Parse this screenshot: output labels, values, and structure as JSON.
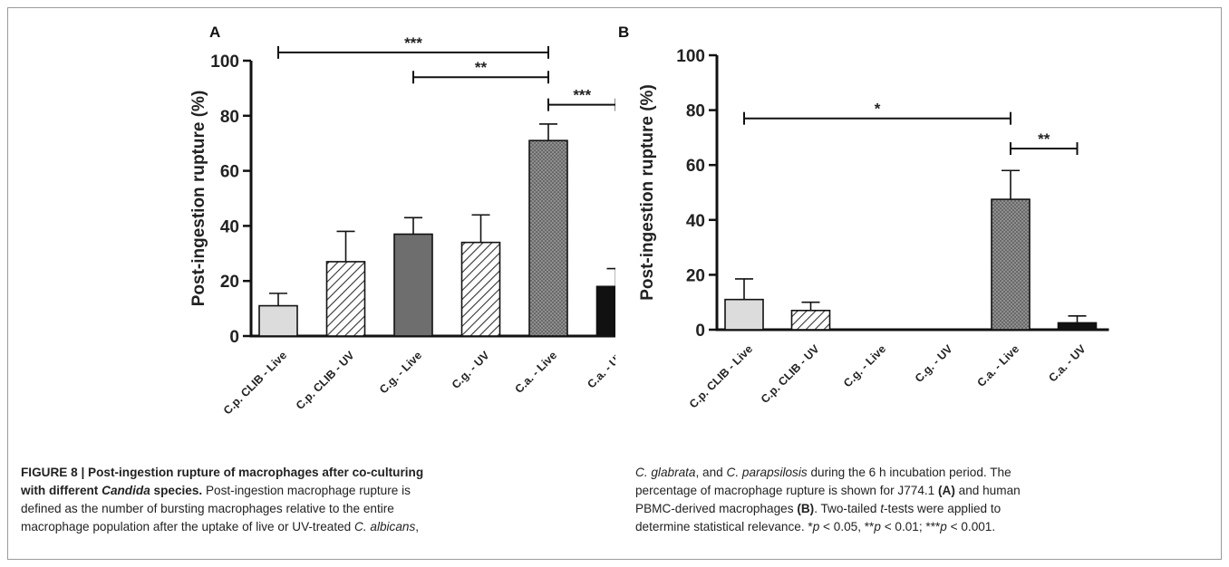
{
  "chart_data": [
    {
      "type": "bar",
      "panel_label": "A",
      "ylabel": "Post-ingestion rupture (%)",
      "ylim": [
        0,
        100
      ],
      "yticks": [
        0,
        20,
        40,
        60,
        80,
        100
      ],
      "categories": [
        "C.p. CLIB - Live",
        "C.p. CLIB - UV",
        "C.g. - Live",
        "C.g. - UV",
        "C.a. - Live",
        "C.a. - UV"
      ],
      "values": [
        11,
        27,
        37,
        34,
        71,
        18
      ],
      "errors": [
        4.5,
        11,
        6,
        10,
        6,
        6.5
      ],
      "fills": [
        "light-gray",
        "hatched",
        "dark-gray",
        "hatched",
        "dotted",
        "black"
      ],
      "significance": [
        {
          "from": 0,
          "to": 4,
          "label": "***",
          "y": 103
        },
        {
          "from": 2,
          "to": 4,
          "label": "**",
          "y": 94
        },
        {
          "from": 4,
          "to": 5,
          "label": "***",
          "y": 84
        }
      ]
    },
    {
      "type": "bar",
      "panel_label": "B",
      "ylabel": "Post-ingestion rupture (%)",
      "ylim": [
        0,
        100
      ],
      "yticks": [
        0,
        20,
        40,
        60,
        80,
        100
      ],
      "categories": [
        "C.p. CLIB - Live",
        "C.p. CLIB - UV",
        "C.g. - Live",
        "C.g. - UV",
        "C.a. - Live",
        "C.a. - UV"
      ],
      "values": [
        11,
        7,
        0,
        0,
        47.5,
        2.5
      ],
      "errors": [
        7.5,
        3,
        0,
        0,
        10.5,
        2.5
      ],
      "fills": [
        "light-gray",
        "hatched",
        "dark-gray",
        "hatched",
        "dotted",
        "black"
      ],
      "significance": [
        {
          "from": 0,
          "to": 4,
          "label": "*",
          "y": 77
        },
        {
          "from": 4,
          "to": 5,
          "label": "**",
          "y": 66
        }
      ]
    }
  ],
  "caption": {
    "figure_label": "FIGURE 8 | Post-ingestion rupture of macrophages after co-culturing",
    "title_line2_prefix": "with different ",
    "title_line2_italic": "Candida",
    "title_line2_suffix": " species.",
    "line2_rest": " Post-ingestion macrophage rupture is",
    "line3": "defined as the number of bursting macrophages relative to the entire",
    "line4_prefix": "macrophage population after the uptake of live or UV-treated ",
    "line4_italic": "C. albicans",
    "line4_suffix": ",",
    "r1_italic_a": "C. glabrata",
    "r1_mid": ", and ",
    "r1_italic_b": "C. parapsilosis",
    "r1_suffix": " during the 6 h incubation period. The",
    "r2_prefix": "percentage of macrophage rupture is shown for J774.1 ",
    "r2_bold": "(A)",
    "r2_suffix": " and human",
    "r3_prefix": "PBMC-derived macrophages ",
    "r3_bold": "(B)",
    "r3_mid": ". Two-tailed ",
    "r3_italic": "t",
    "r3_suffix": "-tests were applied to",
    "r4_prefix": "determine statistical relevance. *",
    "r4_p1": "p",
    "r4_t1": " < 0.05, **",
    "r4_p2": "p",
    "r4_t2": " < 0.01; ***",
    "r4_p3": "p",
    "r4_t3": " < 0.001."
  }
}
